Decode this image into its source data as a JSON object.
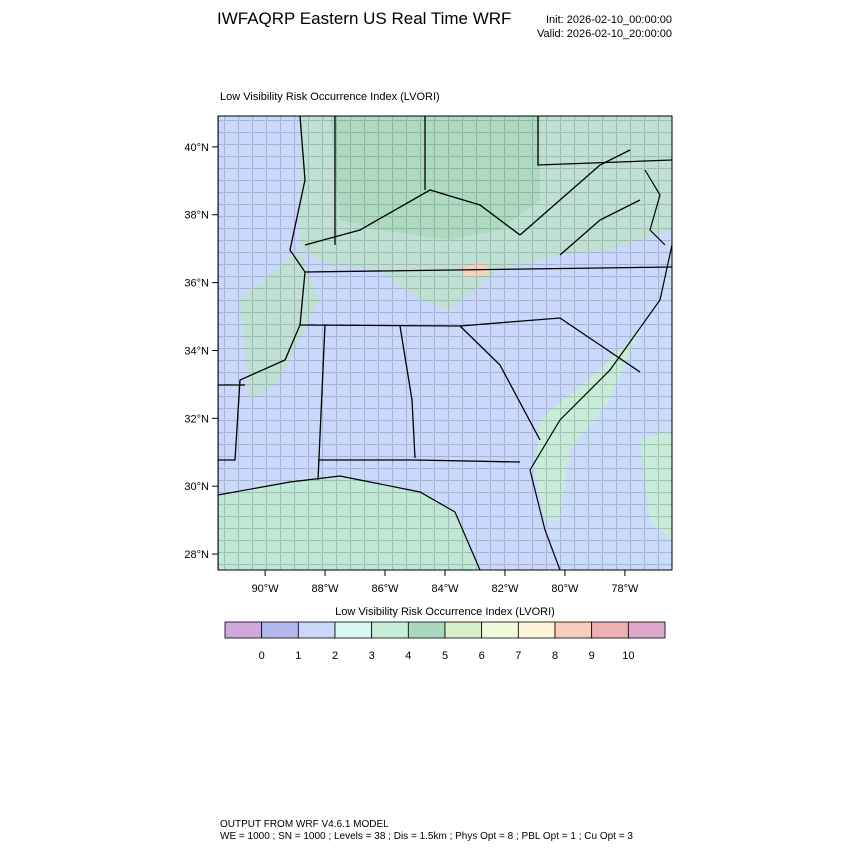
{
  "title": "IWFAQRP Eastern US Real Time WRF",
  "init": "Init: 2026-02-10_00:00:00",
  "valid": "Valid: 2026-02-10_20:00:00",
  "map": {
    "title": "Low Visibility Risk Occurrence Index   (LVORI)",
    "lonlim": [
      -91.57,
      -76.43
    ],
    "latlim": [
      27.53,
      40.91
    ],
    "lon_ticks": [
      {
        "value": -90,
        "label": "90°W"
      },
      {
        "value": -88,
        "label": "88°W"
      },
      {
        "value": -86,
        "label": "86°W"
      },
      {
        "value": -84,
        "label": "84°W"
      },
      {
        "value": -82,
        "label": "82°W"
      },
      {
        "value": -80,
        "label": "80°W"
      },
      {
        "value": -78,
        "label": "78°W"
      }
    ],
    "lat_ticks": [
      {
        "value": 28,
        "label": "28°N"
      },
      {
        "value": 30,
        "label": "30°N"
      },
      {
        "value": 32,
        "label": "32°N"
      },
      {
        "value": 34,
        "label": "34°N"
      },
      {
        "value": 36,
        "label": "36°N"
      },
      {
        "value": 38,
        "label": "38°N"
      },
      {
        "value": 40,
        "label": "40°N"
      }
    ]
  },
  "colorbar": {
    "title": "Low Visibility Risk Occurrence Index  (LVORI)",
    "levels": [
      0,
      1,
      2,
      3,
      4,
      5,
      6,
      7,
      8,
      9,
      10
    ],
    "colors": [
      "#cfa8dc",
      "#b3b8ee",
      "#c9d8fb",
      "#d8f8f2",
      "#c7ecd7",
      "#a9d8bc",
      "#d9f0c8",
      "#f0fbdc",
      "#fdf4da",
      "#f8cdbb",
      "#eeb0b5",
      "#dda7cc"
    ]
  },
  "footer": {
    "line1": "OUTPUT FROM WRF V4.6.1 MODEL",
    "line2": "WE = 1000 ; SN = 1000 ; Levels = 38 ; Dis = 1.5km ; Phys Opt = 8 ; PBL Opt = 1 ; Cu Opt = 3"
  }
}
